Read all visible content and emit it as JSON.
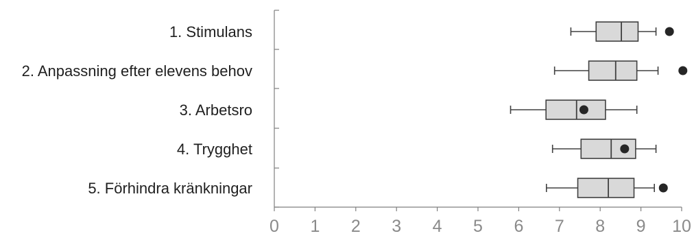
{
  "chart_data": {
    "type": "box",
    "orientation": "horizontal",
    "title": "",
    "xlabel": "",
    "ylabel": "",
    "xlim": [
      0,
      10
    ],
    "x_ticks": [
      "0",
      "1",
      "2",
      "3",
      "4",
      "5",
      "6",
      "7",
      "8",
      "9",
      "10"
    ],
    "grid": false,
    "legend": "none",
    "colors": {
      "box_fill": "#d9d9d9",
      "stroke": "#404040",
      "marker": "#262626",
      "axis": "#7f7f7f",
      "tick_text": "#8a8a8a",
      "label_text": "#1f1f1f"
    },
    "categories": [
      "1. Stimulans",
      "2. Anpassning efter elevens behov",
      "3. Arbetsro",
      "4. Trygghet",
      "5. Förhindra kränkningar"
    ],
    "boxes": [
      {
        "whisker_low": 7.28,
        "q1": 7.9,
        "median": 8.52,
        "q3": 8.93,
        "whisker_high": 9.37,
        "marker": 9.7
      },
      {
        "whisker_low": 6.88,
        "q1": 7.72,
        "median": 8.38,
        "q3": 8.9,
        "whisker_high": 9.42,
        "marker": 10.03
      },
      {
        "whisker_low": 5.8,
        "q1": 6.67,
        "median": 7.42,
        "q3": 8.13,
        "whisker_high": 8.9,
        "marker": 7.6
      },
      {
        "whisker_low": 6.83,
        "q1": 7.53,
        "median": 8.27,
        "q3": 8.87,
        "whisker_high": 9.37,
        "marker": 8.6
      },
      {
        "whisker_low": 6.68,
        "q1": 7.45,
        "median": 8.2,
        "q3": 8.83,
        "whisker_high": 9.33,
        "marker": 9.55
      }
    ]
  }
}
